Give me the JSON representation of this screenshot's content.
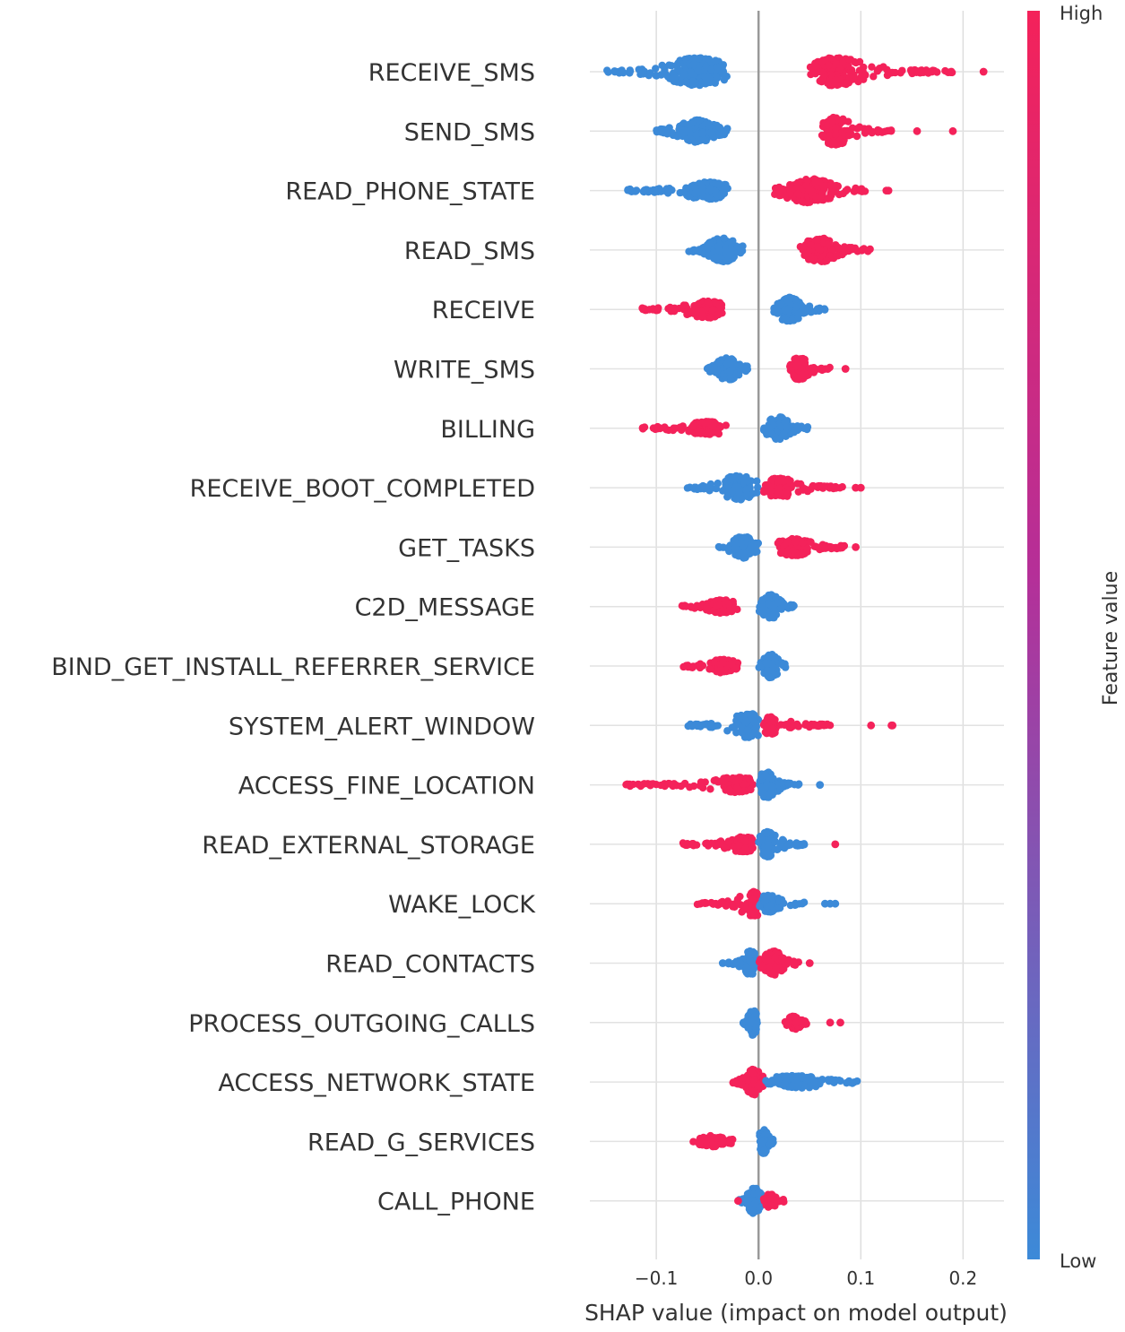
{
  "chart_data": {
    "type": "scatter",
    "subtype": "shap-beeswarm-summary",
    "xlabel": "SHAP value (impact on model output)",
    "xlim": [
      -0.165,
      0.24
    ],
    "xticks": [
      -0.1,
      0.0,
      0.1,
      0.2
    ],
    "xtick_labels": [
      "−0.1",
      "0.0",
      "0.1",
      "0.2"
    ],
    "colorbar": {
      "title": "Feature value",
      "high_label": "High",
      "low_label": "Low",
      "low_color": "#3c8ad8",
      "high_color": "#f4225a"
    },
    "features": [
      {
        "name": "RECEIVE_SMS",
        "clusters": [
          {
            "color": "low",
            "min": -0.15,
            "max": -0.03,
            "peak": -0.06,
            "n": 260,
            "width": 28
          },
          {
            "color": "high",
            "min": 0.05,
            "max": 0.19,
            "peak": 0.075,
            "n": 220,
            "width": 28
          },
          {
            "color": "high",
            "points": [
              0.22
            ]
          }
        ]
      },
      {
        "name": "SEND_SMS",
        "clusters": [
          {
            "color": "low",
            "min": -0.1,
            "max": -0.03,
            "peak": -0.06,
            "n": 170,
            "width": 22
          },
          {
            "color": "high",
            "min": 0.06,
            "max": 0.13,
            "peak": 0.075,
            "n": 160,
            "width": 28
          },
          {
            "color": "high",
            "points": [
              0.155,
              0.19
            ]
          }
        ]
      },
      {
        "name": "READ_PHONE_STATE",
        "clusters": [
          {
            "color": "low",
            "min": -0.13,
            "max": -0.03,
            "peak": -0.05,
            "n": 220,
            "width": 16
          },
          {
            "color": "high",
            "min": 0.015,
            "max": 0.11,
            "peak": 0.05,
            "n": 200,
            "width": 24
          },
          {
            "color": "high",
            "points": [
              0.125,
              0.127
            ]
          }
        ]
      },
      {
        "name": "READ_SMS",
        "clusters": [
          {
            "color": "low",
            "min": -0.07,
            "max": -0.015,
            "peak": -0.035,
            "n": 140,
            "width": 24
          },
          {
            "color": "high",
            "min": 0.04,
            "max": 0.11,
            "peak": 0.06,
            "n": 160,
            "width": 24
          }
        ]
      },
      {
        "name": "RECEIVE",
        "clusters": [
          {
            "color": "high",
            "min": -0.115,
            "max": -0.035,
            "peak": -0.05,
            "n": 170,
            "width": 16
          },
          {
            "color": "low",
            "min": 0.015,
            "max": 0.065,
            "peak": 0.03,
            "n": 140,
            "width": 24
          }
        ]
      },
      {
        "name": "WRITE_SMS",
        "clusters": [
          {
            "color": "low",
            "min": -0.055,
            "max": -0.01,
            "peak": -0.03,
            "n": 120,
            "width": 22
          },
          {
            "color": "high",
            "min": 0.03,
            "max": 0.07,
            "peak": 0.04,
            "n": 100,
            "width": 22
          },
          {
            "color": "high",
            "points": [
              0.085
            ]
          }
        ]
      },
      {
        "name": "BILLING",
        "clusters": [
          {
            "color": "high",
            "min": -0.115,
            "max": -0.03,
            "peak": -0.05,
            "n": 130,
            "width": 12
          },
          {
            "color": "low",
            "min": 0.005,
            "max": 0.055,
            "peak": 0.02,
            "n": 140,
            "width": 22
          }
        ]
      },
      {
        "name": "RECEIVE_BOOT_COMPLETED",
        "clusters": [
          {
            "color": "low",
            "min": -0.07,
            "max": 0.0,
            "peak": -0.02,
            "n": 140,
            "width": 24
          },
          {
            "color": "high",
            "min": 0.005,
            "max": 0.085,
            "peak": 0.02,
            "n": 160,
            "width": 18
          },
          {
            "color": "high",
            "points": [
              0.095,
              0.1
            ]
          }
        ]
      },
      {
        "name": "GET_TASKS",
        "clusters": [
          {
            "color": "low",
            "min": -0.04,
            "max": 0.0,
            "peak": -0.015,
            "n": 120,
            "width": 24
          },
          {
            "color": "high",
            "min": 0.015,
            "max": 0.085,
            "peak": 0.035,
            "n": 130,
            "width": 16
          },
          {
            "color": "high",
            "points": [
              0.095
            ]
          }
        ]
      },
      {
        "name": "C2D_MESSAGE",
        "clusters": [
          {
            "color": "high",
            "min": -0.075,
            "max": -0.02,
            "peak": -0.035,
            "n": 120,
            "width": 12
          },
          {
            "color": "low",
            "min": 0.0,
            "max": 0.035,
            "peak": 0.012,
            "n": 110,
            "width": 24
          }
        ]
      },
      {
        "name": "BIND_GET_INSTALL_REFERRER_SERVICE",
        "clusters": [
          {
            "color": "high",
            "min": -0.075,
            "max": -0.02,
            "peak": -0.035,
            "n": 110,
            "width": 12
          },
          {
            "color": "low",
            "min": 0.0,
            "max": 0.03,
            "peak": 0.012,
            "n": 110,
            "width": 24
          }
        ]
      },
      {
        "name": "SYSTEM_ALERT_WINDOW",
        "clusters": [
          {
            "color": "low",
            "min": -0.07,
            "max": 0.0,
            "peak": -0.01,
            "n": 140,
            "width": 24
          },
          {
            "color": "high",
            "min": 0.005,
            "max": 0.07,
            "peak": 0.012,
            "n": 130,
            "width": 16
          },
          {
            "color": "high",
            "points": [
              0.11,
              0.13,
              0.131
            ]
          }
        ]
      },
      {
        "name": "ACCESS_FINE_LOCATION",
        "clusters": [
          {
            "color": "high",
            "min": -0.13,
            "max": -0.005,
            "peak": -0.02,
            "n": 170,
            "width": 14
          },
          {
            "color": "low",
            "min": 0.0,
            "max": 0.04,
            "peak": 0.008,
            "n": 120,
            "width": 26
          },
          {
            "color": "low",
            "points": [
              0.06
            ]
          }
        ]
      },
      {
        "name": "READ_EXTERNAL_STORAGE",
        "clusters": [
          {
            "color": "high",
            "min": -0.075,
            "max": -0.005,
            "peak": -0.015,
            "n": 140,
            "width": 14
          },
          {
            "color": "low",
            "min": 0.0,
            "max": 0.045,
            "peak": 0.008,
            "n": 120,
            "width": 26
          },
          {
            "color": "high",
            "points": [
              0.075
            ]
          }
        ]
      },
      {
        "name": "WAKE_LOCK",
        "clusters": [
          {
            "color": "high",
            "min": -0.06,
            "max": 0.0,
            "peak": -0.005,
            "n": 130,
            "width": 24
          },
          {
            "color": "low",
            "min": 0.0,
            "max": 0.045,
            "peak": 0.01,
            "n": 110,
            "width": 16
          },
          {
            "color": "low",
            "points": [
              0.065,
              0.07,
              0.075
            ]
          }
        ]
      },
      {
        "name": "READ_CONTACTS",
        "clusters": [
          {
            "color": "low",
            "min": -0.03,
            "max": 0.0,
            "peak": -0.008,
            "n": 110,
            "width": 24
          },
          {
            "color": "high",
            "min": 0.0,
            "max": 0.04,
            "peak": 0.015,
            "n": 110,
            "width": 24
          },
          {
            "color": "low",
            "points": [
              -0.035
            ]
          },
          {
            "color": "high",
            "points": [
              0.05
            ]
          }
        ]
      },
      {
        "name": "PROCESS_OUTGOING_CALLS",
        "clusters": [
          {
            "color": "low",
            "min": -0.015,
            "max": 0.0,
            "peak": -0.005,
            "n": 110,
            "width": 26
          },
          {
            "color": "high",
            "min": 0.025,
            "max": 0.05,
            "peak": 0.035,
            "n": 60,
            "width": 12
          },
          {
            "color": "high",
            "points": [
              0.07,
              0.08
            ]
          }
        ]
      },
      {
        "name": "ACCESS_NETWORK_STATE",
        "clusters": [
          {
            "color": "high",
            "min": -0.025,
            "max": 0.005,
            "peak": -0.005,
            "n": 120,
            "width": 26
          },
          {
            "color": "low",
            "min": 0.005,
            "max": 0.1,
            "peak": 0.035,
            "n": 130,
            "width": 12
          }
        ]
      },
      {
        "name": "READ_G_SERVICES",
        "clusters": [
          {
            "color": "high",
            "min": -0.07,
            "max": -0.025,
            "peak": -0.045,
            "n": 110,
            "width": 10
          },
          {
            "color": "low",
            "min": 0.0,
            "max": 0.015,
            "peak": 0.005,
            "n": 90,
            "width": 24
          }
        ]
      },
      {
        "name": "CALL_PHONE",
        "clusters": [
          {
            "color": "low",
            "min": -0.02,
            "max": 0.005,
            "peak": -0.004,
            "n": 110,
            "width": 26
          },
          {
            "color": "high",
            "min": 0.005,
            "max": 0.025,
            "peak": 0.012,
            "n": 60,
            "width": 14
          },
          {
            "color": "high",
            "points": [
              -0.02
            ]
          }
        ]
      }
    ]
  }
}
